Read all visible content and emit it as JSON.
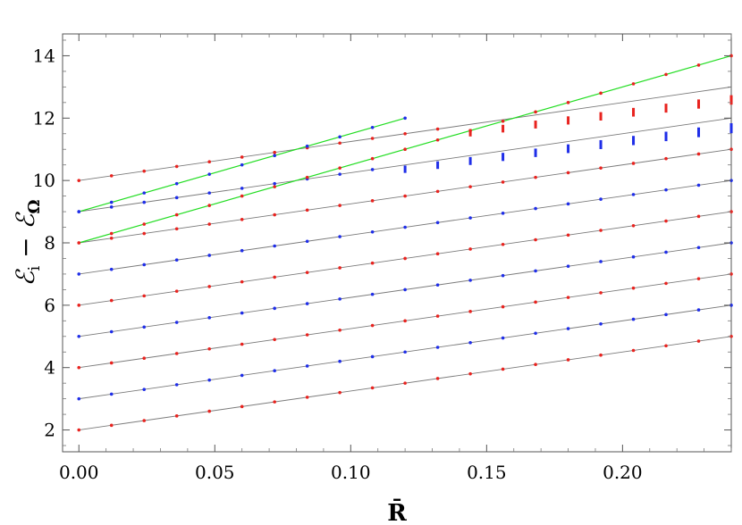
{
  "chart_data": {
    "type": "scatter",
    "title": "",
    "xlabel": "R̄",
    "ylabel": "ℰᵢ − ℰ_Ω",
    "ylabel_main": "ℰ",
    "ylabel_sub1": "i",
    "ylabel_minus": " − ",
    "ylabel_sub2": "Ω",
    "xlim": [
      -0.006,
      0.24
    ],
    "ylim": [
      1.3,
      14.7
    ],
    "xticks": [
      0.0,
      0.05,
      0.1,
      0.15,
      0.2
    ],
    "xtick_labels": [
      "0.00",
      "0.05",
      "0.10",
      "0.15",
      "0.20"
    ],
    "yticks": [
      2,
      4,
      6,
      8,
      10,
      12,
      14
    ],
    "ytick_labels": [
      "2",
      "4",
      "6",
      "8",
      "10",
      "12",
      "14"
    ],
    "grid": false,
    "x_samples": [
      0,
      0.012,
      0.024,
      0.036,
      0.048,
      0.06,
      0.072,
      0.084,
      0.096,
      0.108,
      0.12,
      0.132,
      0.144,
      0.156,
      0.168,
      0.18,
      0.192,
      0.204,
      0.216,
      0.228,
      0.24
    ],
    "colors": {
      "red": "#e8231f",
      "blue": "#1f2ee8",
      "gray": "#7a7a7a",
      "green": "#22dd22"
    },
    "gray_lines": [
      {
        "intercept": 2,
        "slope": 12.5,
        "x_end": 0.24
      },
      {
        "intercept": 3,
        "slope": 12.5,
        "x_end": 0.24
      },
      {
        "intercept": 4,
        "slope": 12.5,
        "x_end": 0.24
      },
      {
        "intercept": 5,
        "slope": 12.5,
        "x_end": 0.24
      },
      {
        "intercept": 6,
        "slope": 12.5,
        "x_end": 0.24
      },
      {
        "intercept": 7,
        "slope": 12.5,
        "x_end": 0.24
      },
      {
        "intercept": 8,
        "slope": 12.5,
        "x_end": 0.24
      },
      {
        "intercept": 9,
        "slope": 12.5,
        "x_end": 0.24
      },
      {
        "intercept": 10,
        "slope": 12.5,
        "x_end": 0.24
      }
    ],
    "green_lines": [
      {
        "intercept": 9,
        "slope": 25,
        "x_end": 0.12
      },
      {
        "intercept": 8,
        "slope": 25,
        "x_end": 0.24
      }
    ],
    "series": [
      {
        "color": "red",
        "intercept": 2,
        "slope": 12.5,
        "x_end": 0.24
      },
      {
        "color": "blue",
        "intercept": 3,
        "slope": 12.5,
        "x_end": 0.24
      },
      {
        "color": "red",
        "intercept": 4,
        "slope": 12.5,
        "x_end": 0.24
      },
      {
        "color": "blue",
        "intercept": 5,
        "slope": 12.5,
        "x_end": 0.24
      },
      {
        "color": "red",
        "intercept": 6,
        "slope": 12.5,
        "x_end": 0.24
      },
      {
        "color": "blue",
        "intercept": 7,
        "slope": 12.5,
        "x_end": 0.24
      },
      {
        "color": "red",
        "intercept": 8,
        "slope": 12.5,
        "x_end": 0.24
      },
      {
        "color": "blue",
        "intercept": 9,
        "slope": 12.5,
        "x_end": 0.108,
        "spread": [
          0,
          0,
          0,
          0,
          0,
          0,
          0,
          0,
          0,
          0,
          0,
          0.04,
          0.06,
          0.08,
          0.1,
          0.12,
          0.14,
          0.16,
          0.18,
          0.2,
          0.22
        ],
        "spread_from": 0.12,
        "offset_after": -0.12
      },
      {
        "color": "red",
        "intercept": 10,
        "slope": 12.5,
        "x_end": 0.24,
        "spread_from": 0.144,
        "offset_after": -0.25
      },
      {
        "color": "blue",
        "intercept": 9,
        "slope": 25,
        "x_end": 0.12
      },
      {
        "color": "red",
        "intercept": 8,
        "slope": 25,
        "x_end": 0.24
      }
    ]
  }
}
